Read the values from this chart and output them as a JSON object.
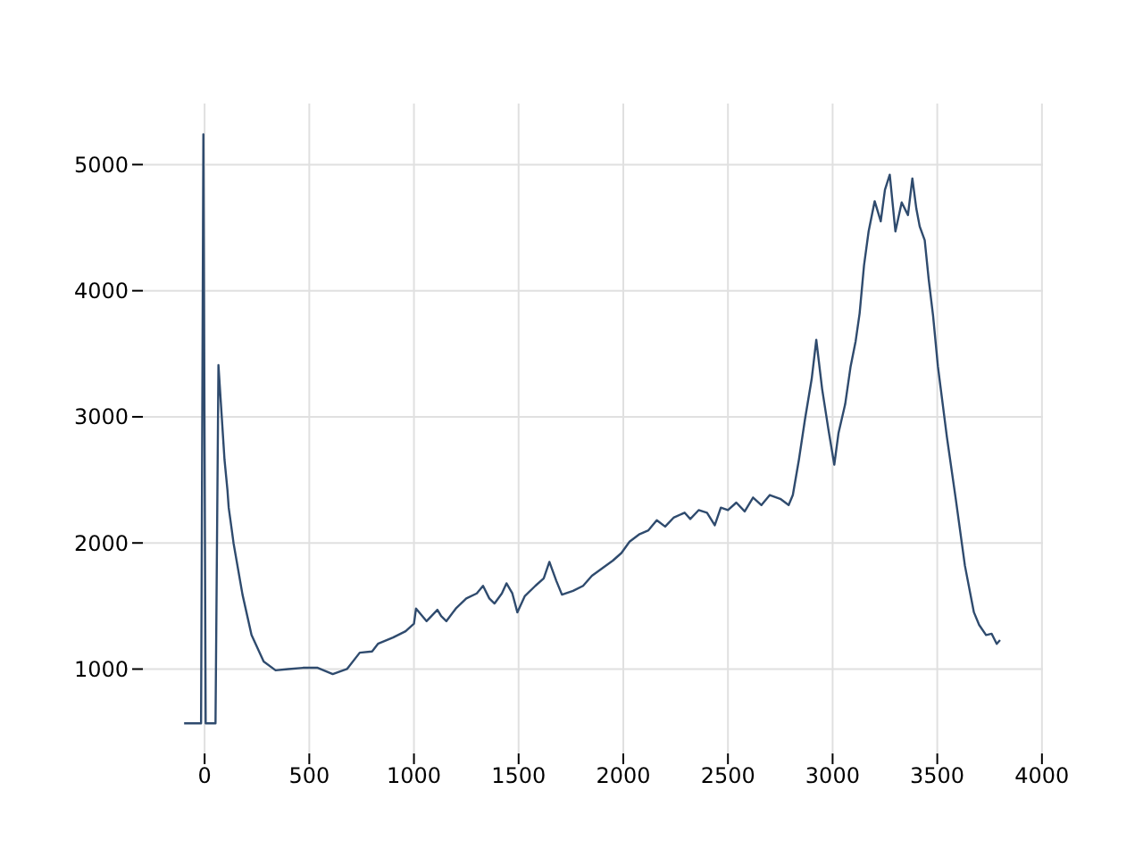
{
  "chart_data": {
    "type": "line",
    "xlim": [
      -295,
      4005
    ],
    "ylim": [
      331,
      5484
    ],
    "xticks": [
      0,
      500,
      1000,
      1500,
      2000,
      2500,
      3000,
      3500,
      4000
    ],
    "yticks": [
      1000,
      2000,
      3000,
      4000,
      5000
    ],
    "grid": true,
    "marker": "none",
    "line_style": "solid",
    "series": [
      {
        "color": "#2f4b6e",
        "x": [
          -98,
          -17,
          -6,
          5,
          52,
          66,
          95,
          109,
          115,
          130,
          138,
          181,
          224,
          282,
          339,
          400,
          470,
          540,
          612,
          680,
          741,
          800,
          828,
          900,
          960,
          1000,
          1010,
          1060,
          1112,
          1130,
          1155,
          1200,
          1250,
          1300,
          1330,
          1360,
          1385,
          1420,
          1442,
          1470,
          1494,
          1530,
          1580,
          1620,
          1647,
          1680,
          1707,
          1760,
          1808,
          1850,
          1900,
          1950,
          1991,
          2030,
          2078,
          2120,
          2160,
          2200,
          2240,
          2293,
          2320,
          2360,
          2400,
          2437,
          2466,
          2500,
          2540,
          2580,
          2620,
          2660,
          2700,
          2750,
          2790,
          2810,
          2839,
          2868,
          2900,
          2922,
          2950,
          2980,
          3008,
          3028,
          3060,
          3086,
          3110,
          3129,
          3150,
          3172,
          3201,
          3230,
          3250,
          3273,
          3300,
          3330,
          3360,
          3381,
          3400,
          3416,
          3440,
          3459,
          3480,
          3503,
          3546,
          3589,
          3632,
          3675,
          3700,
          3733,
          3760,
          3784,
          3800
        ],
        "values": [
          570,
          570,
          5240,
          570,
          570,
          3410,
          2660,
          2420,
          2280,
          2100,
          2000,
          1590,
          1270,
          1060,
          990,
          1000,
          1010,
          1010,
          960,
          1000,
          1130,
          1140,
          1200,
          1250,
          1300,
          1360,
          1480,
          1380,
          1470,
          1420,
          1380,
          1480,
          1560,
          1600,
          1660,
          1560,
          1520,
          1600,
          1680,
          1600,
          1450,
          1580,
          1660,
          1720,
          1850,
          1700,
          1590,
          1620,
          1660,
          1740,
          1800,
          1860,
          1920,
          2010,
          2070,
          2100,
          2180,
          2130,
          2200,
          2240,
          2190,
          2260,
          2240,
          2140,
          2280,
          2260,
          2320,
          2250,
          2360,
          2300,
          2380,
          2350,
          2300,
          2380,
          2660,
          2980,
          3300,
          3610,
          3220,
          2900,
          2620,
          2870,
          3100,
          3400,
          3600,
          3820,
          4200,
          4470,
          4710,
          4550,
          4800,
          4920,
          4470,
          4700,
          4600,
          4890,
          4650,
          4510,
          4400,
          4090,
          3800,
          3400,
          2840,
          2340,
          1820,
          1450,
          1350,
          1270,
          1280,
          1200,
          1230
        ]
      }
    ]
  }
}
